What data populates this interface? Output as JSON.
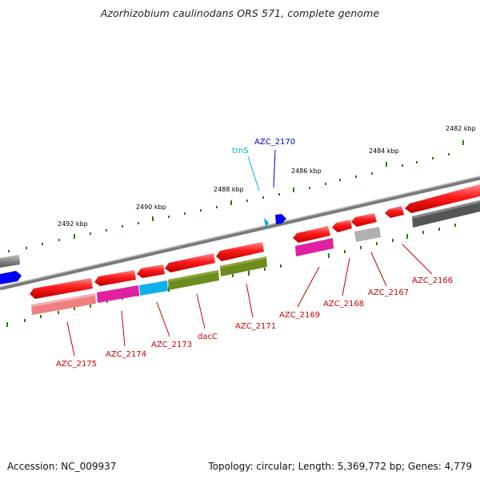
{
  "title": "Azorhizobium caulinodans ORS 571, complete genome",
  "footer": {
    "accession": "Accession: NC_009937",
    "summary": "Topology: circular; Length: 5,369,772 bp; Genes: 4,779"
  },
  "scale_labels": [
    "2482 kbp",
    "2484 kbp",
    "2486 kbp",
    "2488 kbp",
    "2490 kbp",
    "2492 kbp"
  ],
  "gene_labels": {
    "trnS": "trnS",
    "azc2170": "AZC_2170",
    "azc2166": "AZC_2166",
    "azc2167": "AZC_2167",
    "azc2168": "AZC_2168",
    "azc2169": "AZC_2169",
    "azc2171": "AZC_2171",
    "dacC": "dacC",
    "azc2173": "AZC_2173",
    "azc2174": "AZC_2174",
    "azc2175": "AZC_2175"
  },
  "colors": {
    "backbone": "#8a8a8a",
    "gene": "#ff2020",
    "label_red": "#cc0000",
    "label_blue": "#0000cc",
    "label_cyan": "#00aadd",
    "tick": "#2e7d10",
    "cog_green": "#6e8b1e",
    "cog_magenta": "#e020a0",
    "cog_cyan": "#10b0e8",
    "cog_pink": "#f08080",
    "cog_gray": "#666666",
    "cog_lightgray": "#b0b0b0",
    "trna_blue": "#0000ee"
  }
}
